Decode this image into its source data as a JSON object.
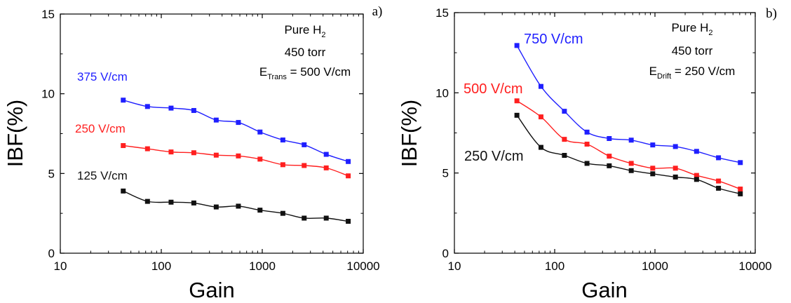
{
  "chart_data": [
    {
      "type": "line",
      "panel_label": "a)",
      "xlabel": "Gain",
      "ylabel": "IBF(%)",
      "xscale": "log",
      "xlim": [
        10,
        10000
      ],
      "ylim": [
        0,
        15
      ],
      "xticks": [
        "10",
        "100",
        "1000",
        "10000"
      ],
      "yticks": [
        "0",
        "5",
        "10",
        "15"
      ],
      "grid": false,
      "annotation": {
        "lines": [
          {
            "text": "Pure H",
            "sub": "2",
            "rest": ""
          },
          {
            "text": "450 torr",
            "sub": "",
            "rest": ""
          },
          {
            "text": "E",
            "sub": "Trans",
            "rest": " = 500 V/cm"
          }
        ]
      },
      "series": [
        {
          "name": "375 V/cm",
          "color": "#1f1fff",
          "x": [
            42,
            73,
            125,
            210,
            350,
            580,
            950,
            1600,
            2600,
            4300,
            7100
          ],
          "y": [
            9.6,
            9.2,
            9.1,
            8.95,
            8.35,
            8.2,
            7.6,
            7.1,
            6.8,
            6.2,
            5.75
          ]
        },
        {
          "name": "250 V/cm",
          "color": "#ff1f1f",
          "x": [
            42,
            73,
            125,
            210,
            350,
            580,
            950,
            1600,
            2600,
            4300,
            7100
          ],
          "y": [
            6.75,
            6.55,
            6.35,
            6.3,
            6.15,
            6.1,
            5.9,
            5.55,
            5.5,
            5.35,
            4.85
          ]
        },
        {
          "name": "125 V/cm",
          "color": "#111111",
          "x": [
            42,
            73,
            125,
            210,
            350,
            580,
            950,
            1600,
            2600,
            4300,
            7100
          ],
          "y": [
            3.9,
            3.25,
            3.2,
            3.15,
            2.9,
            2.95,
            2.7,
            2.5,
            2.2,
            2.2,
            2.0
          ]
        }
      ]
    },
    {
      "type": "line",
      "panel_label": "b)",
      "xlabel": "Gain",
      "ylabel": "IBF(%)",
      "xscale": "log",
      "xlim": [
        10,
        10000
      ],
      "ylim": [
        0,
        15
      ],
      "xticks": [
        "10",
        "100",
        "1000",
        "10000"
      ],
      "yticks": [
        "0",
        "5",
        "10",
        "15"
      ],
      "grid": false,
      "annotation": {
        "lines": [
          {
            "text": "Pure H",
            "sub": "2",
            "rest": ""
          },
          {
            "text": "450 torr",
            "sub": "",
            "rest": ""
          },
          {
            "text": "E",
            "sub": "Drift",
            "rest": " = 250 V/cm"
          }
        ]
      },
      "series": [
        {
          "name": "750 V/cm",
          "color": "#1f1fff",
          "x": [
            42,
            73,
            125,
            210,
            350,
            580,
            950,
            1600,
            2600,
            4300,
            7100
          ],
          "y": [
            12.95,
            10.4,
            8.85,
            7.55,
            7.15,
            7.05,
            6.75,
            6.65,
            6.35,
            5.95,
            5.65
          ]
        },
        {
          "name": "500 V/cm",
          "color": "#ff1f1f",
          "x": [
            42,
            73,
            125,
            210,
            350,
            580,
            950,
            1600,
            2600,
            4300,
            7100
          ],
          "y": [
            9.5,
            8.5,
            7.1,
            6.8,
            6.05,
            5.6,
            5.3,
            5.3,
            4.85,
            4.5,
            4.0
          ]
        },
        {
          "name": "250 V/cm",
          "color": "#111111",
          "x": [
            42,
            73,
            125,
            210,
            350,
            580,
            950,
            1600,
            2600,
            4300,
            7100
          ],
          "y": [
            8.6,
            6.6,
            6.1,
            5.6,
            5.45,
            5.15,
            4.95,
            4.75,
            4.6,
            4.05,
            3.7
          ]
        }
      ]
    }
  ]
}
